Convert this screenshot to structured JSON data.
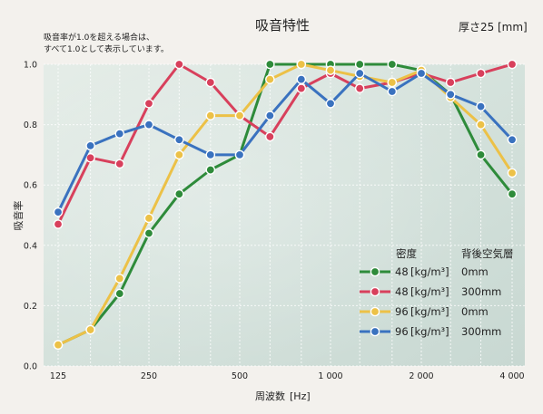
{
  "chart_data": {
    "type": "line",
    "title": "吸音特性",
    "thickness_label": "厚さ25",
    "thickness_unit": "[mm]",
    "note": [
      "吸音率が1.0を超える場合は、",
      "すべて1.0として表示しています。"
    ],
    "ylabel": "吸音率",
    "xlabel": "周波数",
    "xlabel_unit": "[Hz]",
    "ylim": [
      0,
      1.0
    ],
    "yticks": [
      "0.0",
      "0.2",
      "0.4",
      "0.6",
      "0.8",
      "1.0"
    ],
    "x": [
      125,
      160,
      200,
      250,
      315,
      400,
      500,
      630,
      800,
      1000,
      1250,
      1600,
      2000,
      2500,
      3150,
      4000
    ],
    "xticks": [
      {
        "value": 125,
        "label": "125"
      },
      {
        "value": 250,
        "label": "250"
      },
      {
        "value": 500,
        "label": "500"
      },
      {
        "value": 1000,
        "label": "1 000"
      },
      {
        "value": 2000,
        "label": "2 000"
      },
      {
        "value": 4000,
        "label": "4 000"
      }
    ],
    "grid": true,
    "legend_position": "bottom-right",
    "legend_headers": [
      "密度",
      "背後空気層"
    ],
    "series": [
      {
        "density": "48",
        "density_unit": "[kg/m³]",
        "air_gap": "0mm",
        "color": "#2e8b3a",
        "values": [
          0.07,
          0.12,
          0.24,
          0.44,
          0.57,
          0.65,
          0.7,
          1.0,
          1.0,
          1.0,
          1.0,
          1.0,
          0.98,
          0.9,
          0.7,
          0.57
        ]
      },
      {
        "density": "48",
        "density_unit": "[kg/m³]",
        "air_gap": "300mm",
        "color": "#d8405c",
        "values": [
          0.47,
          0.69,
          0.67,
          0.87,
          1.0,
          0.94,
          0.83,
          0.76,
          0.92,
          0.97,
          0.92,
          0.94,
          0.97,
          0.94,
          0.97,
          1.0
        ]
      },
      {
        "density": "96",
        "density_unit": "[kg/m³]",
        "air_gap": "0mm",
        "color": "#ecc147",
        "values": [
          0.07,
          0.12,
          0.29,
          0.49,
          0.7,
          0.83,
          0.83,
          0.95,
          1.0,
          0.98,
          0.96,
          0.94,
          0.98,
          0.89,
          0.8,
          0.64
        ]
      },
      {
        "density": "96",
        "density_unit": "[kg/m³]",
        "air_gap": "300mm",
        "color": "#3a72bf",
        "values": [
          0.51,
          0.73,
          0.77,
          0.8,
          0.75,
          0.7,
          0.7,
          0.83,
          0.95,
          0.87,
          0.97,
          0.91,
          0.97,
          0.9,
          0.86,
          0.75
        ]
      }
    ]
  }
}
